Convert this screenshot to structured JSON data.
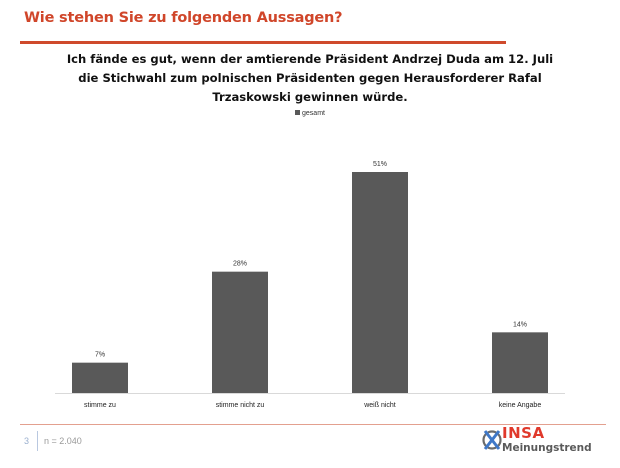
{
  "slide": {
    "title": "Wie stehen Sie zu folgenden Aussagen?",
    "page_number": "3",
    "sample_size": "n = 2.040",
    "accent_color": "#d0462a"
  },
  "logo": {
    "brand": "INSA",
    "subtitle": "Meinungstrend",
    "icon": "ballot-cross-icon"
  },
  "chart_data": {
    "type": "bar",
    "title": "Ich fände es gut, wenn der amtierende Präsident Andrzej Duda am 12. Juli die Stichwahl zum polnischen Präsidenten gegen Herausforderer Rafal Trzaskowski gewinnen würde.",
    "categories": [
      "stimme zu",
      "stimme nicht zu",
      "weiß nicht",
      "keine Angabe"
    ],
    "series": [
      {
        "name": "gesamt",
        "values": [
          7,
          28,
          51,
          14
        ],
        "color": "#595959"
      }
    ],
    "data_labels": [
      "7%",
      "28%",
      "51%",
      "14%"
    ],
    "unit": "%",
    "xlabel": "",
    "ylabel": "",
    "ylim": [
      0,
      51
    ],
    "grid": false,
    "legend": {
      "entries": [
        "gesamt"
      ],
      "position": "top"
    }
  }
}
